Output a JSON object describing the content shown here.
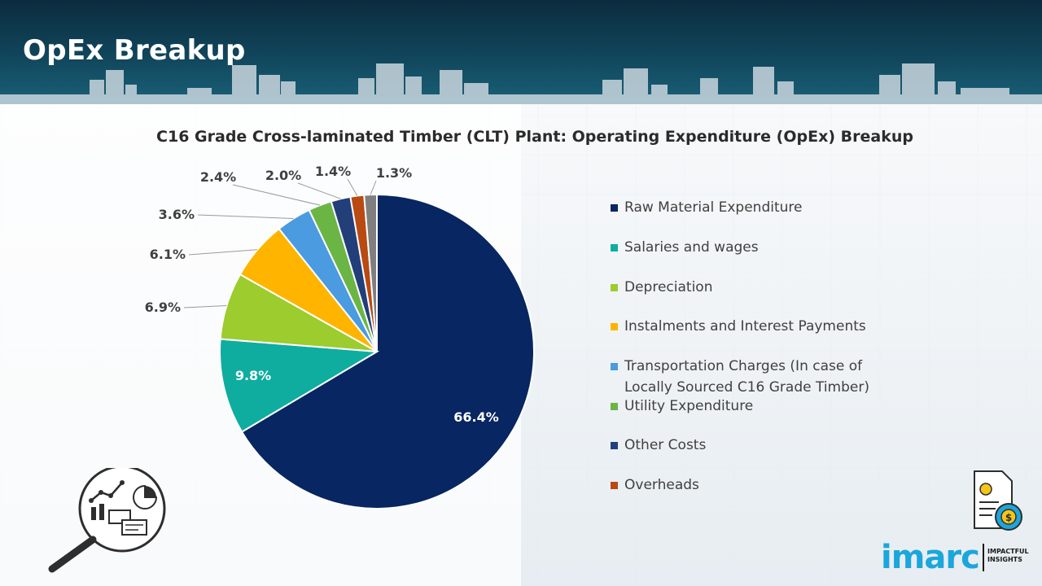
{
  "header": {
    "title": "OpEx Breakup"
  },
  "chart_data": {
    "type": "pie",
    "title": "C16 Grade Cross-laminated Timber (CLT) Plant: Operating Expenditure (OpEx) Breakup",
    "legend_position": "right",
    "slices": [
      {
        "label": "Raw Material Expenditure",
        "value": 66.4,
        "value_label": "66.4%",
        "color": "#082661"
      },
      {
        "label": "Salaries and wages",
        "value": 9.8,
        "value_label": "9.8%",
        "color": "#0eada0"
      },
      {
        "label": "Depreciation",
        "value": 6.9,
        "value_label": "6.9%",
        "color": "#9ccc2e"
      },
      {
        "label": "Instalments and Interest Payments",
        "value": 6.1,
        "value_label": "6.1%",
        "color": "#ffb400"
      },
      {
        "label": "Transportation Charges (In case of Locally Sourced C16 Grade Timber)",
        "value": 3.6,
        "value_label": "3.6%",
        "color": "#4a9be0"
      },
      {
        "label": "Utility Expenditure",
        "value": 2.4,
        "value_label": "2.4%",
        "color": "#6bb545"
      },
      {
        "label": "Other Costs",
        "value": 2.0,
        "value_label": "2.0%",
        "color": "#223f7a"
      },
      {
        "label": "Overheads",
        "value": 1.4,
        "value_label": "1.4%",
        "color": "#b84a12"
      },
      {
        "label": "",
        "value": 1.3,
        "value_label": "1.3%",
        "color": "#7f7f7f"
      }
    ]
  },
  "legend": {
    "items": [
      {
        "lines": [
          "Raw Material Expenditure"
        ],
        "color": "#082661"
      },
      {
        "lines": [
          "Salaries and wages"
        ],
        "color": "#0eada0"
      },
      {
        "lines": [
          "Depreciation"
        ],
        "color": "#9ccc2e"
      },
      {
        "lines": [
          "Instalments and Interest Payments"
        ],
        "color": "#ffb400"
      },
      {
        "lines": [
          "Transportation Charges (In case of",
          "Locally Sourced C16 Grade Timber)"
        ],
        "color": "#4a9be0"
      },
      {
        "lines": [
          "Utility Expenditure"
        ],
        "color": "#6bb545"
      },
      {
        "lines": [
          "Other Costs"
        ],
        "color": "#223f7a"
      },
      {
        "lines": [
          "Overheads"
        ],
        "color": "#b84a12"
      }
    ]
  },
  "branding": {
    "logo_text": "imarc",
    "tagline_line1": "IMPACTFUL",
    "tagline_line2": "INSIGHTS"
  },
  "icons": {
    "left": "magnifier-analytics-icon",
    "right": "invoice-dollar-gear-icon"
  }
}
